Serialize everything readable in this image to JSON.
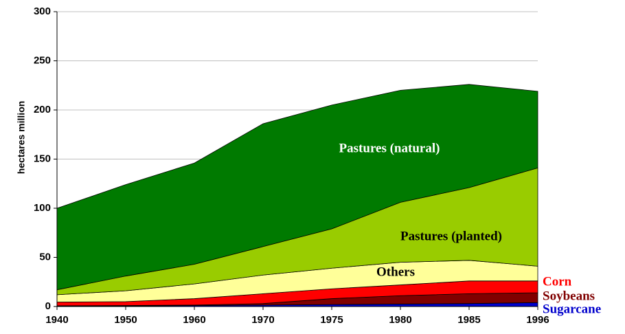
{
  "chart_data": {
    "type": "stacked_area",
    "y_label": "hectares million",
    "categories": [
      "1940",
      "1950",
      "1960",
      "1970",
      "1975",
      "1980",
      "1985",
      "1996"
    ],
    "series": [
      {
        "name": "Sugarcane",
        "color": "#0000cc",
        "values": [
          0.5,
          0.5,
          1,
          1.5,
          2,
          2.5,
          3,
          4
        ]
      },
      {
        "name": "Soybeans",
        "color": "#800000",
        "values": [
          0.3,
          0.5,
          0.5,
          1.5,
          6,
          8.5,
          10,
          10
        ]
      },
      {
        "name": "Corn",
        "color": "#ff0000",
        "values": [
          3.7,
          4,
          6.5,
          10,
          10,
          11,
          13,
          12
        ]
      },
      {
        "name": "Others",
        "color": "#ffff99",
        "values": [
          7.5,
          11,
          15,
          19,
          21,
          23,
          21,
          15
        ]
      },
      {
        "name": "Pastures (planted)",
        "color": "#99cc00",
        "values": [
          5,
          15,
          20,
          29,
          40,
          61,
          74,
          100
        ]
      },
      {
        "name": "Pastures (natural)",
        "color": "#007a00",
        "values": [
          83,
          93,
          103,
          125,
          126,
          114,
          105,
          78
        ]
      }
    ],
    "ylim": [
      0,
      300
    ],
    "yticks": [
      0,
      50,
      100,
      150,
      200,
      250,
      300
    ],
    "grid": true
  }
}
